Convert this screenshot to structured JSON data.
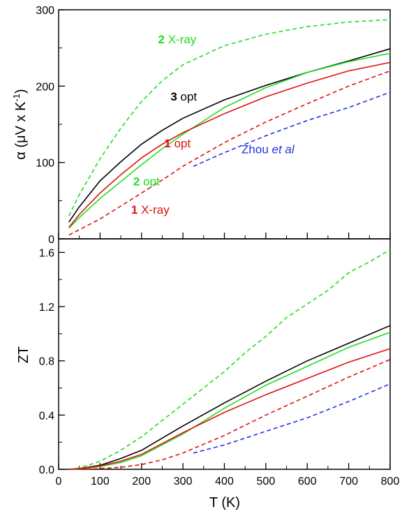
{
  "chart_data": [
    {
      "type": "line",
      "panel": "top",
      "ylabel_parts": [
        "α (μV x K",
        "-1",
        ")"
      ],
      "xlim": [
        0,
        800
      ],
      "ylim": [
        0,
        300
      ],
      "yticks": [
        0,
        100,
        200,
        300
      ],
      "ytick_labels": [
        "0",
        "100",
        "200",
        "300"
      ],
      "grid": false,
      "series": [
        {
          "id": "s2xray",
          "color": "#22dd22",
          "dash": true,
          "x": [
            25,
            50,
            100,
            150,
            200,
            250,
            300,
            400,
            500,
            600,
            700,
            800
          ],
          "y": [
            30,
            58,
            105,
            145,
            180,
            207,
            228,
            253,
            268,
            278,
            284,
            287
          ]
        },
        {
          "id": "s3opt",
          "color": "#000000",
          "dash": false,
          "x": [
            25,
            50,
            100,
            150,
            200,
            250,
            300,
            400,
            500,
            600,
            700,
            800
          ],
          "y": [
            22,
            42,
            76,
            101,
            124,
            142,
            158,
            182,
            201,
            218,
            233,
            249
          ]
        },
        {
          "id": "s2opt",
          "color": "#22dd22",
          "dash": false,
          "x": [
            25,
            50,
            100,
            150,
            200,
            250,
            300,
            400,
            500,
            600,
            700,
            800
          ],
          "y": [
            14,
            28,
            53,
            75,
            97,
            118,
            137,
            172,
            198,
            218,
            232,
            243
          ]
        },
        {
          "id": "s1opt",
          "color": "#dd1111",
          "dash": false,
          "x": [
            25,
            50,
            100,
            150,
            200,
            250,
            300,
            400,
            500,
            600,
            700,
            800
          ],
          "y": [
            15,
            32,
            60,
            84,
            106,
            124,
            139,
            164,
            186,
            204,
            220,
            231
          ]
        },
        {
          "id": "s1xray",
          "color": "#dd1111",
          "dash": true,
          "x": [
            25,
            50,
            100,
            150,
            200,
            250,
            300,
            400,
            500,
            600,
            700,
            800
          ],
          "y": [
            5,
            12,
            26,
            43,
            60,
            77,
            95,
            126,
            153,
            177,
            200,
            220
          ]
        },
        {
          "id": "zhou",
          "color": "#2233dd",
          "dash": true,
          "x": [
            325,
            400,
            500,
            600,
            700,
            800
          ],
          "y": [
            95,
            113,
            135,
            155,
            172,
            192
          ]
        }
      ],
      "annotations": [
        {
          "id": "ann-2xray",
          "num": "2",
          "text": " X-ray",
          "color": "#22dd22",
          "x": 240,
          "y": 256
        },
        {
          "id": "ann-3opt",
          "num": "3",
          "text": " opt",
          "color": "#000000",
          "x": 270,
          "y": 181
        },
        {
          "id": "ann-1opt",
          "num": "1",
          "text": " opt",
          "color": "#dd1111",
          "x": 255,
          "y": 120
        },
        {
          "id": "ann-2opt",
          "num": "2",
          "text": " opt",
          "color": "#22dd22",
          "x": 180,
          "y": 70
        },
        {
          "id": "ann-1xray",
          "num": "1",
          "text": " X-ray",
          "color": "#dd1111",
          "x": 175,
          "y": 33
        }
      ],
      "annotation_zhou": {
        "prefix": "Zhou ",
        "italic": "et al",
        "color": "#2233dd",
        "x": 505,
        "y": 112
      }
    },
    {
      "type": "line",
      "panel": "bottom",
      "ylabel": "ZT",
      "xlabel": "T (K)",
      "xlim": [
        0,
        800
      ],
      "ylim": [
        0,
        1.7
      ],
      "xticks": [
        0,
        100,
        200,
        300,
        400,
        500,
        600,
        700,
        800
      ],
      "xtick_labels": [
        "0",
        "100",
        "200",
        "300",
        "400",
        "500",
        "600",
        "700",
        "800"
      ],
      "yticks": [
        0,
        0.4,
        0.8,
        1.2,
        1.6
      ],
      "ytick_labels": [
        "0.0",
        "0.4",
        "0.8",
        "1.2",
        "1.6"
      ],
      "grid": false,
      "series": [
        {
          "id": "s2xray",
          "color": "#22dd22",
          "dash": true,
          "x": [
            25,
            50,
            100,
            150,
            200,
            250,
            300,
            350,
            400,
            450,
            500,
            550,
            600,
            650,
            700,
            750,
            800
          ],
          "y": [
            0.0,
            0.01,
            0.06,
            0.14,
            0.24,
            0.36,
            0.48,
            0.6,
            0.72,
            0.86,
            0.98,
            1.12,
            1.22,
            1.32,
            1.45,
            1.53,
            1.62
          ]
        },
        {
          "id": "s3opt",
          "color": "#000000",
          "dash": false,
          "x": [
            25,
            50,
            100,
            150,
            200,
            300,
            400,
            500,
            600,
            700,
            800
          ],
          "y": [
            0.0,
            0.005,
            0.03,
            0.08,
            0.14,
            0.32,
            0.49,
            0.65,
            0.8,
            0.93,
            1.06
          ]
        },
        {
          "id": "s2opt",
          "color": "#22dd22",
          "dash": false,
          "x": [
            25,
            50,
            100,
            150,
            200,
            300,
            400,
            500,
            600,
            700,
            800
          ],
          "y": [
            0.0,
            0.003,
            0.02,
            0.05,
            0.1,
            0.26,
            0.45,
            0.62,
            0.76,
            0.9,
            1.01
          ]
        },
        {
          "id": "s1opt",
          "color": "#dd1111",
          "dash": false,
          "x": [
            25,
            50,
            100,
            150,
            200,
            300,
            400,
            500,
            600,
            700,
            800
          ],
          "y": [
            0.0,
            0.004,
            0.025,
            0.06,
            0.11,
            0.27,
            0.42,
            0.55,
            0.67,
            0.79,
            0.89
          ]
        },
        {
          "id": "s1xray",
          "color": "#dd1111",
          "dash": true,
          "x": [
            50,
            100,
            150,
            200,
            250,
            300,
            400,
            500,
            600,
            700,
            800
          ],
          "y": [
            0.0,
            0.005,
            0.015,
            0.035,
            0.07,
            0.12,
            0.25,
            0.4,
            0.54,
            0.68,
            0.81
          ]
        },
        {
          "id": "zhou",
          "color": "#2233dd",
          "dash": true,
          "x": [
            325,
            400,
            500,
            600,
            700,
            800
          ],
          "y": [
            0.12,
            0.18,
            0.28,
            0.38,
            0.5,
            0.63
          ]
        }
      ]
    }
  ]
}
